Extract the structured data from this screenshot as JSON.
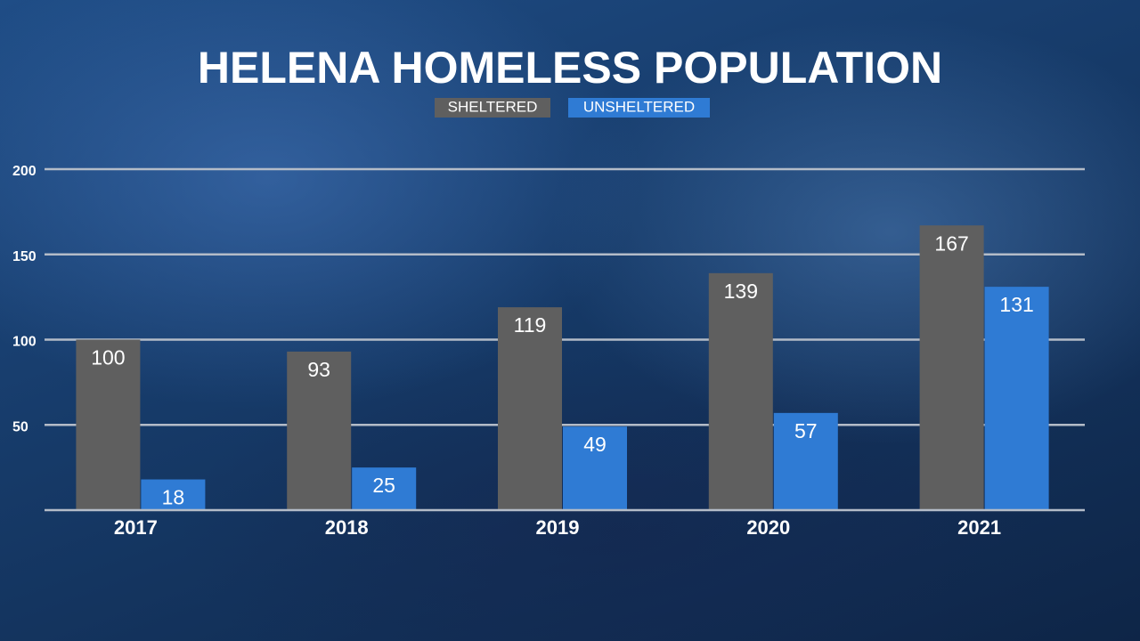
{
  "chart_data": {
    "type": "bar",
    "title": "HELENA HOMELESS POPULATION",
    "categories": [
      "2017",
      "2018",
      "2019",
      "2020",
      "2021"
    ],
    "series": [
      {
        "name": "SHELTERED",
        "color": "#5f5f5f",
        "values": [
          100,
          93,
          119,
          139,
          167
        ]
      },
      {
        "name": "UNSHELTERED",
        "color": "#2f7bd4",
        "values": [
          18,
          25,
          49,
          57,
          131
        ]
      }
    ],
    "ylim": [
      0,
      200
    ],
    "yticks": [
      50,
      100,
      150,
      200
    ],
    "grid": true,
    "legend": "top"
  }
}
